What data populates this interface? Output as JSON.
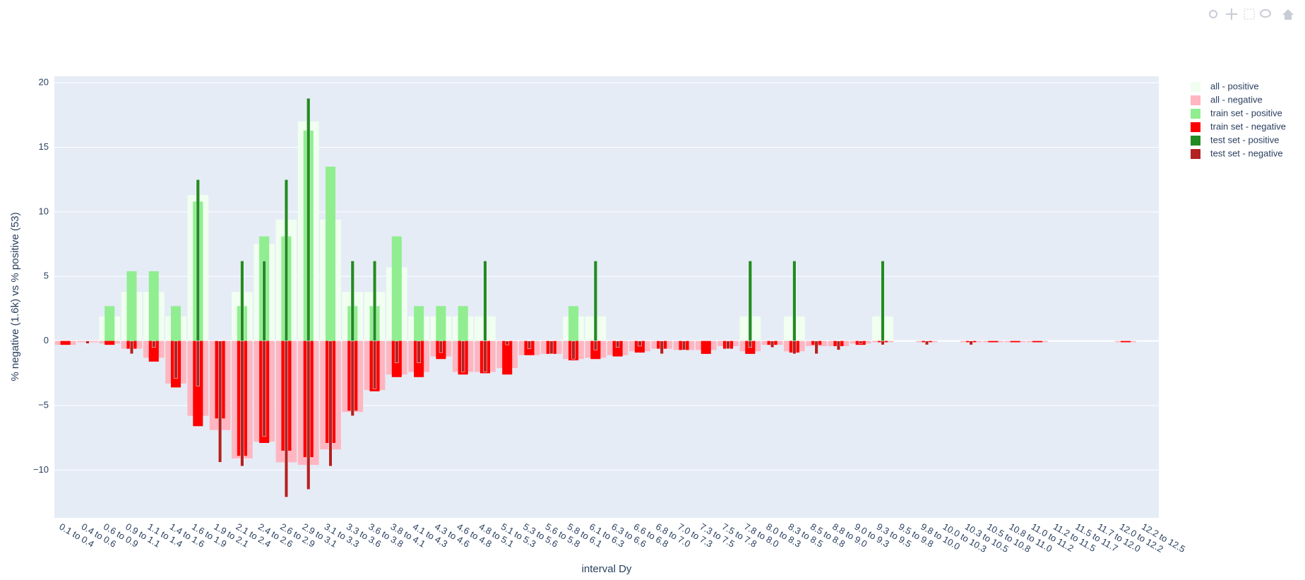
{
  "chart_data": {
    "type": "bar",
    "barmode": "overlay",
    "xlabel": "interval Dy",
    "ylabel": "% negative (1.6k) vs % positive (53)",
    "categories": [
      "0.1 to 0.4",
      "0.4 to 0.6",
      "0.6 to 0.9",
      "0.9 to 1.1",
      "1.1 to 1.4",
      "1.4 to 1.6",
      "1.6 to 1.9",
      "1.9 to 2.1",
      "2.1 to 2.4",
      "2.4 to 2.6",
      "2.6 to 2.9",
      "2.9 to 3.1",
      "3.1 to 3.3",
      "3.3 to 3.6",
      "3.6 to 3.8",
      "3.8 to 4.1",
      "4.1 to 4.3",
      "4.3 to 4.6",
      "4.6 to 4.8",
      "4.8 to 5.1",
      "5.1 to 5.3",
      "5.3 to 5.6",
      "5.6 to 5.8",
      "5.8 to 6.1",
      "6.1 to 6.3",
      "6.3 to 6.6",
      "6.6 to 6.8",
      "6.8 to 7.0",
      "7.0 to 7.3",
      "7.3 to 7.5",
      "7.5 to 7.8",
      "7.8 to 8.0",
      "8.0 to 8.3",
      "8.3 to 8.5",
      "8.5 to 8.8",
      "8.8 to 9.0",
      "9.0 to 9.3",
      "9.3 to 9.5",
      "9.5 to 9.8",
      "9.8 to 10.0",
      "10.0 to 10.3",
      "10.3 to 10.5",
      "10.5 to 10.8",
      "10.8 to 11.0",
      "11.0 to 11.2",
      "11.2 to 11.5",
      "11.5 to 11.7",
      "11.7 to 12.0",
      "12.0 to 12.2",
      "12.2 to 12.5"
    ],
    "series": [
      {
        "name": "all - positive",
        "color": "#f0fff0",
        "values": [
          0,
          0,
          1.9,
          3.8,
          3.8,
          1.9,
          11.3,
          0,
          3.8,
          7.5,
          9.4,
          17.0,
          9.4,
          3.8,
          3.8,
          5.7,
          1.9,
          1.9,
          1.9,
          1.9,
          0,
          0,
          0,
          1.9,
          1.9,
          0,
          0,
          0,
          0,
          0,
          0,
          1.9,
          0,
          1.9,
          0,
          0,
          0,
          1.9,
          0,
          0,
          0,
          0,
          0,
          0,
          0,
          0,
          0,
          0,
          0,
          0
        ]
      },
      {
        "name": "all - negative",
        "color": "#ffb6c1",
        "values": [
          -0.3,
          -0.1,
          -0.2,
          -0.6,
          -1.3,
          -3.3,
          -5.8,
          -6.9,
          -9.1,
          -7.8,
          -9.4,
          -9.6,
          -8.4,
          -5.5,
          -3.8,
          -2.6,
          -2.4,
          -1.2,
          -2.4,
          -2.4,
          -2.1,
          -1.1,
          -1.0,
          -1.4,
          -1.3,
          -1.1,
          -0.8,
          -0.6,
          -0.7,
          -0.7,
          -0.4,
          -0.8,
          -0.3,
          -0.8,
          -0.4,
          -0.4,
          -0.2,
          -0.1,
          0,
          -0.1,
          0,
          -0.1,
          -0.1,
          -0.1,
          -0.1,
          0,
          0,
          0,
          -0.1,
          0
        ]
      },
      {
        "name": "train set - positive",
        "color": "#90ee90",
        "values": [
          0,
          0,
          2.7,
          5.4,
          5.4,
          2.7,
          10.8,
          0,
          2.7,
          8.1,
          8.1,
          16.3,
          13.5,
          2.7,
          2.7,
          8.1,
          2.7,
          2.7,
          2.7,
          0,
          0,
          0,
          0,
          2.7,
          0,
          0,
          0,
          0,
          0,
          0,
          0,
          0,
          0,
          0,
          0,
          0,
          0,
          0,
          0,
          0,
          0,
          0,
          0,
          0,
          0,
          0,
          0,
          0,
          0,
          0
        ]
      },
      {
        "name": "train set - negative",
        "color": "#ff0000",
        "values": [
          -0.3,
          0,
          -0.3,
          -0.6,
          -1.6,
          -3.6,
          -6.6,
          -6.0,
          -8.9,
          -7.9,
          -8.5,
          -9.0,
          -7.9,
          -5.4,
          -3.9,
          -2.8,
          -2.8,
          -1.4,
          -2.6,
          -2.5,
          -2.6,
          -1.1,
          -1.0,
          -1.5,
          -1.4,
          -1.2,
          -0.9,
          -0.6,
          -0.7,
          -1.0,
          -0.6,
          -1.0,
          -0.3,
          -0.9,
          -0.3,
          -0.4,
          -0.3,
          -0.1,
          0,
          -0.1,
          0,
          -0.1,
          -0.1,
          -0.1,
          -0.1,
          0,
          0,
          0,
          -0.1,
          0
        ]
      },
      {
        "name": "test set - positive",
        "color": "#228b22",
        "values": [
          0,
          0,
          0,
          0,
          0,
          0,
          12.5,
          0,
          6.2,
          6.2,
          12.5,
          18.8,
          0,
          6.2,
          6.2,
          0,
          0,
          0,
          0,
          6.2,
          0,
          0,
          0,
          0,
          6.2,
          0,
          0,
          0,
          0,
          0,
          0,
          6.2,
          0,
          6.2,
          0,
          0,
          0,
          6.2,
          0,
          0,
          0,
          0,
          0,
          0,
          0,
          0,
          0,
          0,
          0,
          0
        ]
      },
      {
        "name": "test set - negative",
        "color": "#b22222",
        "values": [
          0,
          -0.2,
          0,
          -1.0,
          -0.5,
          -2.9,
          -3.5,
          -9.4,
          -9.7,
          -7.4,
          -12.1,
          -11.5,
          -9.7,
          -5.8,
          -3.7,
          -1.7,
          -1.7,
          -0.9,
          -2.4,
          -2.4,
          -0.3,
          -0.6,
          -1.0,
          -1.4,
          -0.7,
          -0.5,
          -0.4,
          -1.0,
          -0.7,
          0,
          -0.6,
          -0.5,
          -0.5,
          -1.0,
          -1.0,
          -0.7,
          -0.2,
          -0.3,
          0,
          -0.3,
          0,
          -0.3,
          0,
          0,
          0,
          0,
          0,
          0,
          0,
          0
        ]
      }
    ],
    "ylim": [
      -13.7,
      20.5
    ],
    "yticks": [
      {
        "value": -10,
        "label": "−10"
      },
      {
        "value": -5,
        "label": "−5"
      },
      0,
      5,
      10,
      15,
      20
    ],
    "grid": true,
    "legend": "outside right"
  }
}
